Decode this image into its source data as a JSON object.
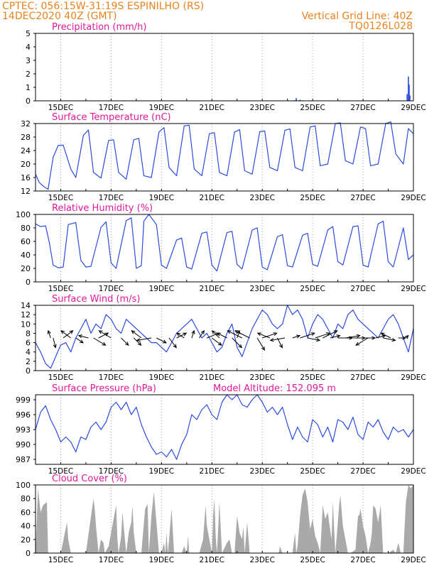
{
  "header": {
    "line1_left": "CPTEC:   056:15W-31:19S   ESPINILHO (RS)",
    "line2_left": "14DEC2020 40Z (GMT)",
    "line1_right": "Vertical Grid Line: 40Z",
    "line2_right": "TQ0126L028",
    "model_altitude": "Model Altitude: 152.095 m"
  },
  "colors": {
    "header": "#e8821e",
    "title": "#e0189a",
    "line": "#2b4be0",
    "cloud": "#a9a9a9",
    "arrow": "#000000",
    "grid": "#9a9a9a"
  },
  "x_axis": {
    "start_day": 14,
    "end_day": 29,
    "tick_days": [
      15,
      17,
      19,
      21,
      23,
      25,
      27,
      29
    ],
    "tick_labels": [
      "15DEC",
      "17DEC",
      "19DEC",
      "21DEC",
      "23DEC",
      "25DEC",
      "27DEC",
      "29DEC"
    ]
  },
  "chart_data": [
    {
      "id": "precip",
      "title": "Precipitation (mm/h)",
      "type": "bar",
      "ylim": [
        0,
        5
      ],
      "yticks": [
        0,
        1,
        2,
        3,
        4,
        5
      ],
      "ytick_labels": [
        "0",
        "1",
        "2",
        "3",
        "4",
        "5"
      ],
      "x": [
        14.9,
        15.8,
        16.9,
        17.5,
        18.2,
        19.5,
        20.5,
        21.0,
        22.2,
        23.0,
        24.3,
        24.35,
        24.5,
        24.6,
        27.0,
        28.5,
        28.75,
        28.8,
        28.83,
        28.86
      ],
      "values": [
        0.02,
        0.02,
        0.03,
        0.04,
        0.02,
        0.03,
        0.02,
        0.02,
        0.02,
        0.02,
        0.05,
        0.2,
        0.08,
        0.04,
        0.02,
        0.03,
        0.5,
        1.8,
        1.2,
        0.4
      ]
    },
    {
      "id": "temp",
      "title": "Surface Temperature (nC)",
      "type": "line",
      "ylim": [
        12,
        32
      ],
      "yticks": [
        12,
        16,
        20,
        24,
        28,
        32
      ],
      "ytick_labels": [
        "12",
        "16",
        "20",
        "24",
        "28",
        "32"
      ],
      "x": [
        14.0,
        14.15,
        14.35,
        14.5,
        14.7,
        14.9,
        15.1,
        15.4,
        15.6,
        15.9,
        16.1,
        16.3,
        16.6,
        16.9,
        17.1,
        17.3,
        17.6,
        17.9,
        18.1,
        18.3,
        18.6,
        18.9,
        19.1,
        19.3,
        19.6,
        19.9,
        20.1,
        20.3,
        20.6,
        20.9,
        21.1,
        21.3,
        21.6,
        21.9,
        22.1,
        22.3,
        22.6,
        22.9,
        23.1,
        23.3,
        23.6,
        23.9,
        24.1,
        24.3,
        24.6,
        24.9,
        25.1,
        25.3,
        25.6,
        25.9,
        26.1,
        26.3,
        26.6,
        26.9,
        27.1,
        27.3,
        27.6,
        27.9,
        28.1,
        28.3,
        28.6,
        28.8,
        29.0
      ],
      "values": [
        17,
        14.5,
        13.2,
        12.5,
        22,
        25.5,
        25.6,
        18.5,
        16,
        28.5,
        30.1,
        17.5,
        15.8,
        27,
        27.2,
        17.5,
        15.5,
        27.2,
        27.6,
        16.5,
        16,
        29.5,
        30.8,
        19,
        16.5,
        31.3,
        31.5,
        18.5,
        16.5,
        29,
        29.3,
        17.5,
        16.5,
        29.5,
        30.2,
        18,
        17,
        29.6,
        29.8,
        19,
        18,
        30,
        30.4,
        19,
        18,
        31,
        31.3,
        19.5,
        20,
        32,
        32.2,
        21,
        20,
        31,
        30.5,
        19.5,
        20,
        32,
        32.5,
        23,
        20,
        30.5,
        29
      ]
    },
    {
      "id": "rh",
      "title": "Relative Humidity (%)",
      "type": "line",
      "ylim": [
        0,
        100
      ],
      "yticks": [
        0,
        20,
        40,
        60,
        80,
        100
      ],
      "ytick_labels": [
        "0",
        "20",
        "40",
        "60",
        "80",
        "100"
      ],
      "x": [
        14.0,
        14.2,
        14.4,
        14.55,
        14.7,
        14.9,
        15.1,
        15.3,
        15.6,
        15.8,
        16.0,
        16.2,
        16.6,
        16.8,
        17.0,
        17.2,
        17.6,
        17.8,
        18.0,
        18.2,
        18.3,
        18.5,
        18.8,
        19.0,
        19.2,
        19.6,
        19.8,
        20.0,
        20.2,
        20.6,
        20.8,
        21.0,
        21.2,
        21.6,
        21.8,
        22.0,
        22.2,
        22.6,
        22.8,
        23.0,
        23.2,
        23.6,
        23.8,
        24.0,
        24.2,
        24.6,
        24.8,
        25.0,
        25.2,
        25.6,
        25.8,
        26.0,
        26.2,
        26.6,
        26.8,
        27.0,
        27.2,
        27.6,
        27.8,
        28.0,
        28.2,
        28.6,
        28.8,
        29.0
      ],
      "values": [
        86,
        82,
        83,
        58,
        25,
        21,
        22,
        85,
        88,
        32,
        22,
        23,
        81,
        89,
        28,
        20,
        91,
        95,
        20,
        24,
        90,
        100,
        85,
        25,
        20,
        62,
        65,
        22,
        19,
        72,
        74,
        25,
        16,
        73,
        75,
        26,
        19,
        77,
        80,
        22,
        18,
        67,
        70,
        24,
        22,
        69,
        72,
        26,
        23,
        77,
        82,
        30,
        25,
        82,
        83,
        25,
        22,
        86,
        90,
        30,
        22,
        80,
        33,
        40
      ]
    },
    {
      "id": "wind",
      "title": "Surface Wind (m/s)",
      "type": "line",
      "ylim": [
        0,
        14
      ],
      "yticks": [
        0,
        2,
        4,
        6,
        8,
        10,
        12,
        14
      ],
      "ytick_labels": [
        "0",
        "2",
        "4",
        "6",
        "8",
        "10",
        "12",
        "14"
      ],
      "x": [
        14.0,
        14.2,
        14.4,
        14.6,
        14.8,
        15.0,
        15.2,
        15.4,
        15.6,
        15.8,
        16.0,
        16.2,
        16.4,
        16.6,
        16.8,
        17.0,
        17.2,
        17.4,
        17.6,
        17.8,
        18.0,
        18.2,
        18.4,
        18.6,
        18.8,
        19.0,
        19.2,
        19.4,
        19.6,
        19.8,
        20.0,
        20.2,
        20.4,
        20.6,
        20.8,
        21.0,
        21.2,
        21.4,
        21.6,
        21.8,
        22.0,
        22.2,
        22.4,
        22.6,
        22.8,
        23.0,
        23.2,
        23.4,
        23.6,
        23.8,
        24.0,
        24.2,
        24.4,
        24.6,
        24.8,
        25.0,
        25.2,
        25.4,
        25.6,
        25.8,
        26.0,
        26.2,
        26.4,
        26.6,
        26.8,
        27.0,
        27.2,
        27.4,
        27.6,
        27.8,
        28.0,
        28.2,
        28.4,
        28.6,
        28.8,
        29.0
      ],
      "values": [
        6,
        4,
        1.5,
        0.5,
        3,
        5.5,
        6,
        4,
        7,
        9,
        11,
        8,
        10,
        9,
        12,
        11,
        9,
        8,
        11,
        10,
        9,
        8,
        7,
        6,
        6,
        5,
        4,
        6,
        8,
        9,
        10,
        11,
        9,
        7,
        8,
        6,
        4,
        5,
        8,
        10,
        5,
        3,
        6,
        9,
        11,
        13,
        12,
        10,
        9,
        10,
        14,
        12,
        13,
        11,
        7,
        10,
        12,
        11,
        9,
        7,
        10,
        9,
        12,
        13,
        11,
        10,
        9,
        8,
        7,
        9,
        11,
        12,
        10,
        7,
        4,
        9
      ],
      "vectors": {
        "x": [
          14.6,
          14.7,
          15.1,
          15.4,
          15.6,
          16.1,
          16.3,
          16.5,
          17.0,
          17.4,
          17.9,
          18.2,
          18.6,
          18.8,
          19.3,
          19.6,
          19.9,
          20.2,
          20.5,
          20.8,
          21.0,
          21.3,
          21.6,
          21.8,
          22.0,
          22.2,
          22.5,
          22.8,
          23.0,
          23.3,
          23.6,
          23.9,
          24.2,
          24.5,
          24.8,
          25.1,
          25.4,
          25.7,
          26.0,
          26.3,
          26.6,
          26.9,
          27.2,
          27.5,
          27.8,
          28.1,
          28.4,
          28.7
        ],
        "dx": [
          -0.1,
          0.1,
          0.4,
          -0.4,
          0.3,
          -0.4,
          0.5,
          0.4,
          -0.5,
          0.3,
          0.3,
          -0.4,
          -0.6,
          0.4,
          0.3,
          0.4,
          -0.3,
          0.1,
          0.2,
          0.5,
          0.4,
          -0.3,
          -0.4,
          0.4,
          0.1,
          -0.6,
          -0.6,
          0.3,
          0.6,
          -0.5,
          0.2,
          -0.6,
          0.3,
          0.6,
          0.5,
          0.6,
          0.6,
          0.4,
          0.6,
          0.6,
          0.5,
          0.6,
          -0.5,
          0.4,
          0.5,
          -0.4,
          0.3,
          0.1
        ],
        "dy": [
          0.3,
          -0.4,
          0.3,
          0.3,
          -0.2,
          0.1,
          -0.3,
          0.2,
          0.3,
          -0.3,
          -0.3,
          0.3,
          -0.1,
          -0.2,
          -0.4,
          0.2,
          0.2,
          0.3,
          0.3,
          0.2,
          -0.3,
          0.3,
          0.2,
          -0.4,
          0.3,
          0.3,
          0.3,
          -0.5,
          0.2,
          0.2,
          -0.4,
          -0.1,
          0.1,
          0.2,
          -0.1,
          0.2,
          0.3,
          0.1,
          0.0,
          0.1,
          0.0,
          0.0,
          -0.3,
          0.1,
          -0.1,
          0.2,
          0.0,
          0.1
        ]
      }
    },
    {
      "id": "pres",
      "title": "Surface Pressure (hPa)",
      "type": "line",
      "ylim": [
        986,
        1000
      ],
      "yticks": [
        987,
        990,
        993,
        996,
        999
      ],
      "ytick_labels": [
        "987",
        "990",
        "993",
        "996",
        "999"
      ],
      "x": [
        14.0,
        14.2,
        14.4,
        14.6,
        14.8,
        15.0,
        15.2,
        15.4,
        15.6,
        15.8,
        16.0,
        16.2,
        16.4,
        16.6,
        16.8,
        17.0,
        17.2,
        17.4,
        17.6,
        17.8,
        18.0,
        18.2,
        18.4,
        18.6,
        18.8,
        19.0,
        19.2,
        19.4,
        19.6,
        19.8,
        20.0,
        20.2,
        20.4,
        20.6,
        20.8,
        21.0,
        21.2,
        21.4,
        21.6,
        21.8,
        22.0,
        22.2,
        22.4,
        22.6,
        22.8,
        23.0,
        23.2,
        23.4,
        23.6,
        23.8,
        24.0,
        24.2,
        24.4,
        24.6,
        24.8,
        25.0,
        25.2,
        25.4,
        25.6,
        25.8,
        26.0,
        26.2,
        26.4,
        26.6,
        26.8,
        27.0,
        27.2,
        27.4,
        27.6,
        27.8,
        28.0,
        28.2,
        28.4,
        28.6,
        28.8,
        29.0
      ],
      "values": [
        993,
        996.5,
        997.8,
        995,
        993,
        990.5,
        991.5,
        990.5,
        988.5,
        991.5,
        991,
        993.5,
        994.5,
        993,
        994.5,
        997.5,
        998.5,
        997,
        998.5,
        996,
        997.5,
        994,
        991.5,
        989.5,
        988,
        988.5,
        987.5,
        989,
        987,
        990,
        992,
        996,
        995,
        997,
        998,
        996,
        995,
        998.5,
        1000,
        999,
        1000,
        998,
        997.5,
        999,
        1000,
        998.5,
        996.5,
        997.5,
        996,
        997.5,
        994,
        991,
        993.5,
        991.5,
        990.5,
        995,
        994,
        991.5,
        993.5,
        990.5,
        995,
        994.5,
        993,
        995.5,
        992,
        991,
        994.5,
        993.5,
        995,
        992.5,
        991,
        993.5,
        992.5,
        993,
        991.5,
        993
      ]
    },
    {
      "id": "cloud",
      "title": "Cloud Cover (%)",
      "type": "area",
      "ylim": [
        0,
        100
      ],
      "yticks": [
        0,
        20,
        40,
        60,
        80,
        100
      ],
      "ytick_labels": [
        "0",
        "20",
        "40",
        "60",
        "80",
        "100"
      ],
      "x": [
        14.0,
        14.1,
        14.2,
        14.3,
        14.45,
        14.5,
        15.0,
        15.25,
        15.3,
        15.4,
        16.0,
        16.3,
        16.35,
        16.4,
        16.5,
        16.6,
        16.7,
        16.75,
        16.9,
        17.0,
        17.2,
        17.25,
        17.3,
        17.4,
        17.45,
        17.5,
        17.6,
        17.7,
        17.8,
        17.85,
        17.9,
        18.0,
        18.2,
        18.35,
        18.45,
        18.5,
        18.6,
        18.7,
        18.9,
        19.0,
        19.1,
        19.15,
        19.2,
        19.25,
        19.3,
        19.4,
        19.5,
        19.8,
        19.9,
        20.0,
        20.05,
        20.1,
        20.5,
        20.65,
        20.75,
        20.8,
        21.0,
        21.05,
        21.1,
        21.15,
        21.2,
        21.25,
        21.3,
        21.4,
        21.6,
        21.7,
        21.8,
        21.9,
        22.0,
        22.1,
        22.2,
        22.25,
        22.3,
        22.4,
        22.5,
        23.0,
        23.6,
        23.65,
        23.7,
        23.8,
        24.0,
        24.2,
        24.3,
        24.35,
        24.4,
        24.5,
        24.6,
        24.7,
        24.8,
        24.9,
        25.0,
        25.1,
        25.2,
        25.3,
        25.4,
        25.5,
        25.6,
        25.75,
        25.8,
        25.9,
        26.0,
        26.05,
        26.1,
        26.2,
        26.3,
        26.4,
        26.5,
        26.7,
        26.8,
        26.85,
        26.9,
        27.0,
        27.1,
        27.2,
        27.3,
        27.35,
        27.4,
        27.5,
        27.6,
        27.7,
        27.8,
        27.9,
        28.0,
        28.2,
        28.3,
        28.4,
        28.5,
        28.6,
        28.7,
        28.8,
        28.9,
        29.0
      ],
      "values": [
        0,
        95,
        60,
        70,
        75,
        0,
        0,
        45,
        20,
        0,
        0,
        80,
        65,
        40,
        0,
        20,
        15,
        0,
        10,
        30,
        70,
        20,
        0,
        25,
        60,
        40,
        0,
        30,
        45,
        70,
        30,
        0,
        0,
        65,
        72,
        0,
        55,
        90,
        0,
        0,
        15,
        0,
        30,
        0,
        20,
        65,
        0,
        0,
        10,
        0,
        25,
        0,
        0,
        20,
        70,
        40,
        0,
        55,
        80,
        25,
        0,
        35,
        75,
        0,
        15,
        20,
        0,
        0,
        55,
        30,
        20,
        40,
        0,
        45,
        0,
        0,
        0,
        0,
        10,
        0,
        0,
        0,
        30,
        0,
        10,
        55,
        85,
        95,
        75,
        35,
        50,
        25,
        15,
        0,
        70,
        50,
        60,
        20,
        75,
        0,
        45,
        70,
        85,
        40,
        20,
        0,
        0,
        5,
        55,
        55,
        65,
        40,
        25,
        0,
        15,
        30,
        70,
        65,
        45,
        70,
        0,
        0,
        0,
        5,
        0,
        15,
        0,
        0,
        75,
        100,
        95,
        100
      ]
    }
  ]
}
